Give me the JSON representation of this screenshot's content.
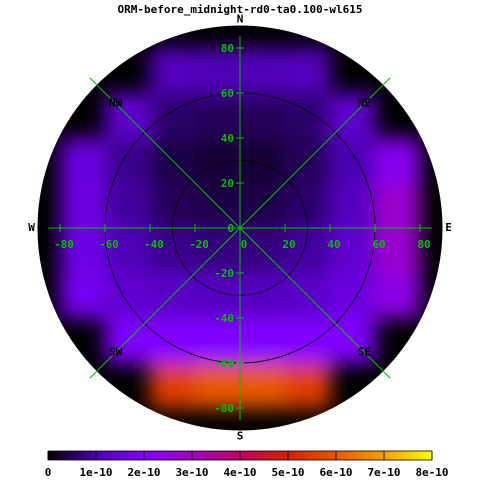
{
  "chart_data": {
    "type": "heatmap",
    "title": "ORM-before_midnight-rd0-ta0.100-wl615",
    "directions": [
      "N",
      "NE",
      "E",
      "SE",
      "S",
      "SW",
      "W",
      "NW"
    ],
    "xlim": [
      -90,
      90
    ],
    "ylim": [
      -90,
      90
    ],
    "xticks": [
      -80,
      -60,
      -40,
      -20,
      0,
      20,
      40,
      60,
      80
    ],
    "yticks": [
      -80,
      -60,
      -40,
      -20,
      0,
      20,
      40,
      60,
      80
    ],
    "rings": [
      30,
      60
    ],
    "x": [
      -70,
      -50,
      -30,
      -10,
      10,
      30,
      50,
      70
    ],
    "y": [
      70,
      50,
      30,
      10,
      -10,
      -30,
      -50,
      -70
    ],
    "z": [
      [
        null,
        null,
        1.2e-10,
        1.1e-10,
        1.1e-10,
        1.2e-10,
        null,
        null
      ],
      [
        null,
        1.4e-10,
        6e-11,
        5e-11,
        5e-11,
        6e-11,
        1.4e-10,
        null
      ],
      [
        1.6e-10,
        8e-11,
        4e-11,
        3e-11,
        3e-11,
        5e-11,
        1e-10,
        2.2e-10
      ],
      [
        1.6e-10,
        9e-11,
        5e-11,
        4e-11,
        4e-11,
        6e-11,
        1.2e-10,
        2.8e-10
      ],
      [
        1.7e-10,
        1.1e-10,
        8e-11,
        7e-11,
        7e-11,
        9e-11,
        1.4e-10,
        2.8e-10
      ],
      [
        1.8e-10,
        1.4e-10,
        1.3e-10,
        1.2e-10,
        1.2e-10,
        1.3e-10,
        1.6e-10,
        2.4e-10
      ],
      [
        null,
        2e-10,
        2e-10,
        2e-10,
        2e-10,
        2e-10,
        2e-10,
        null
      ],
      [
        null,
        null,
        5.5e-10,
        6e-10,
        6e-10,
        5.5e-10,
        null,
        null
      ]
    ],
    "zlim": [
      0,
      8e-10
    ],
    "zticks": [
      0,
      {
        "value": 1e-10,
        "label": "1e-10"
      },
      {
        "value": 2e-10,
        "label": "2e-10"
      },
      {
        "value": 3e-10,
        "label": "3e-10"
      },
      {
        "value": 4e-10,
        "label": "4e-10"
      },
      {
        "value": 5e-10,
        "label": "5e-10"
      },
      {
        "value": 6e-10,
        "label": "6e-10"
      },
      {
        "value": 7e-10,
        "label": "7e-10"
      },
      {
        "value": 8e-10,
        "label": "8e-10"
      }
    ],
    "colormap": [
      "#000000",
      "#4a00b0",
      "#8000ff",
      "#a000c0",
      "#c00060",
      "#d82000",
      "#e85800",
      "#f4a000",
      "#ffff00"
    ],
    "grid_color": "#00c000"
  }
}
